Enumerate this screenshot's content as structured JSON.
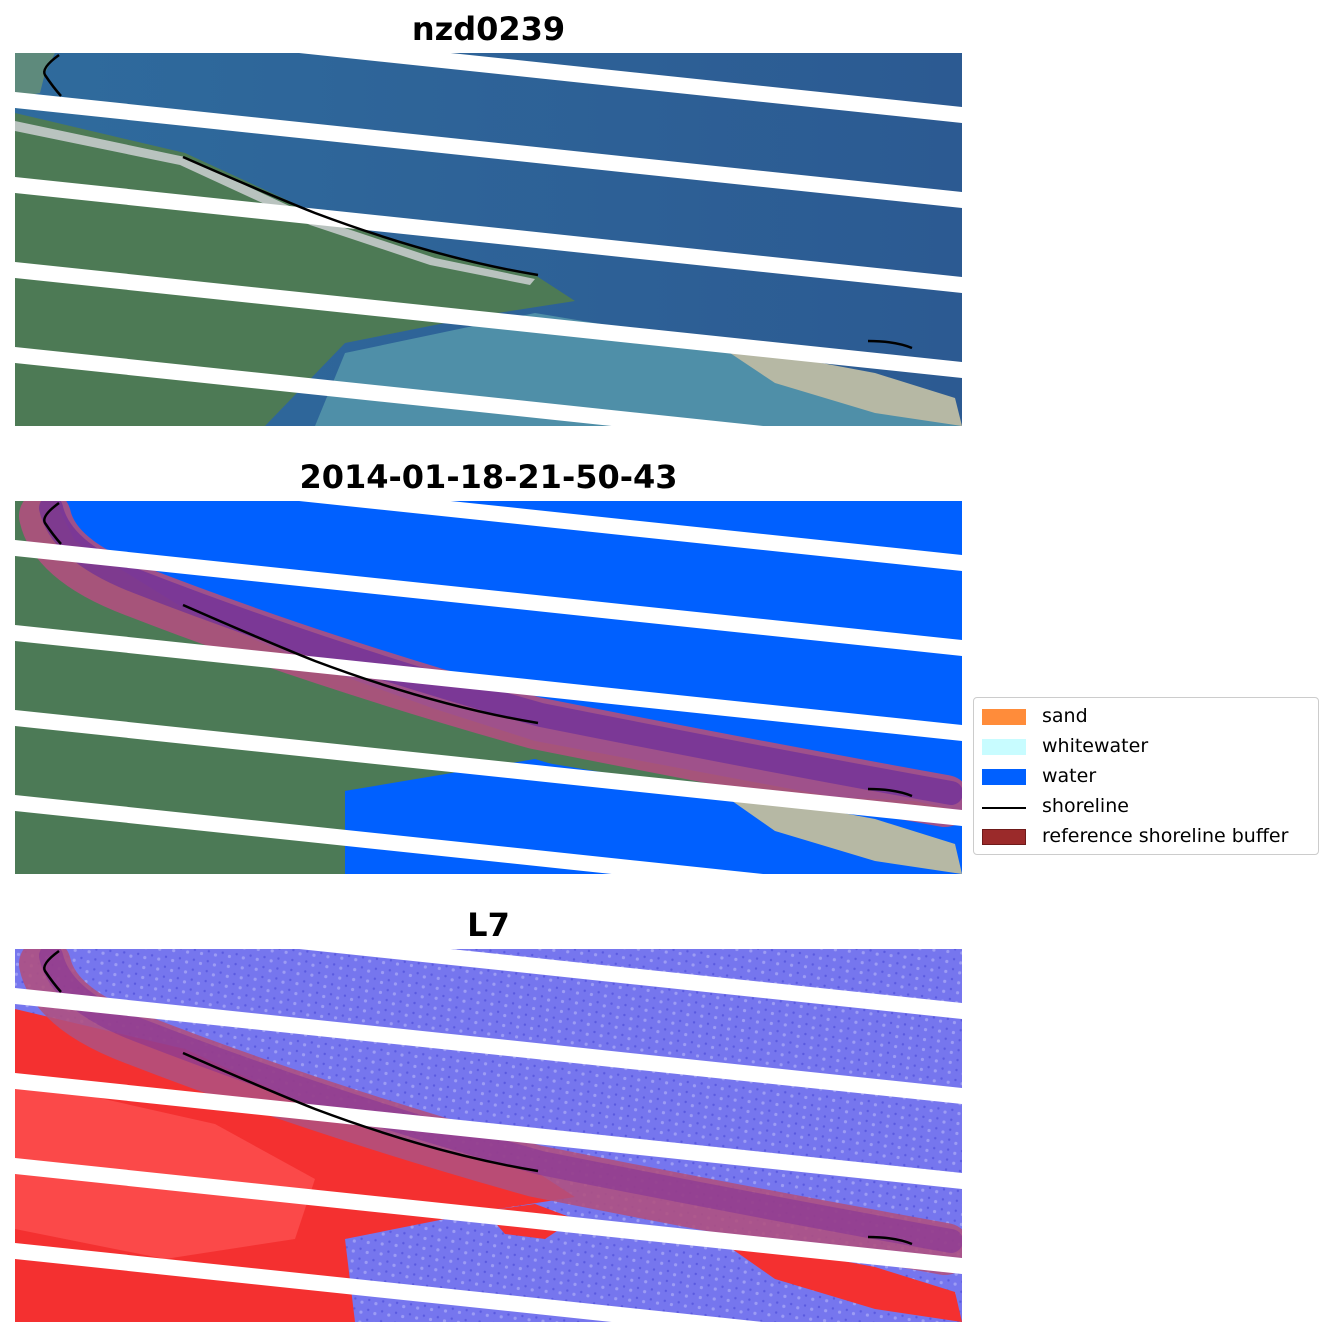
{
  "panels": [
    {
      "title": "nzd0239",
      "kind": "rgb-image"
    },
    {
      "title": "2014-01-18-21-50-43",
      "kind": "classified-image"
    },
    {
      "title": "L7",
      "kind": "water-index-image"
    }
  ],
  "legend": {
    "items": [
      {
        "label": "sand",
        "type": "patch",
        "color": "#ff8c3a"
      },
      {
        "label": "whitewater",
        "type": "patch",
        "color": "#c8fcff"
      },
      {
        "label": "water",
        "type": "patch",
        "color": "#0060ff"
      },
      {
        "label": "shoreline",
        "type": "line",
        "color": "#000000"
      },
      {
        "label": "reference shoreline buffer",
        "type": "patch",
        "color": "#9b2a2a"
      }
    ]
  },
  "colors": {
    "ocean": "#3a6e9c",
    "land": "#4e7c56",
    "water_class": "#0060ff",
    "buffer": "#b0507e",
    "index_land": "#ff2020",
    "index_water": "#7070ee"
  }
}
